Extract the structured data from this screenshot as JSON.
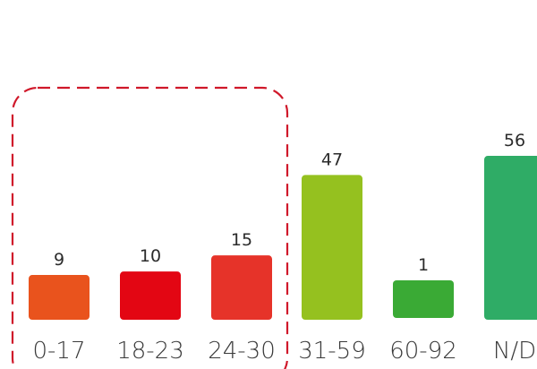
{
  "chart_data": {
    "type": "bar",
    "title": "",
    "xlabel": "",
    "ylabel": "",
    "categories": [
      "0-17",
      "18-23",
      "24-30",
      "31-59",
      "60-92",
      "N/D"
    ],
    "values": [
      9,
      10,
      15,
      47,
      1,
      56
    ],
    "value_labels": [
      "9",
      "10",
      "15",
      "47",
      "1",
      "56"
    ],
    "bar_colors": [
      "#e9531d",
      "#e30613",
      "#e63329",
      "#95c11f",
      "#3aaa35",
      "#2fac66"
    ],
    "highlight_group": {
      "categories": [
        "0-17",
        "18-23",
        "24-30"
      ],
      "style": "dashed rounded box",
      "color": "#d0182a"
    },
    "grid": false,
    "legend": "none"
  }
}
